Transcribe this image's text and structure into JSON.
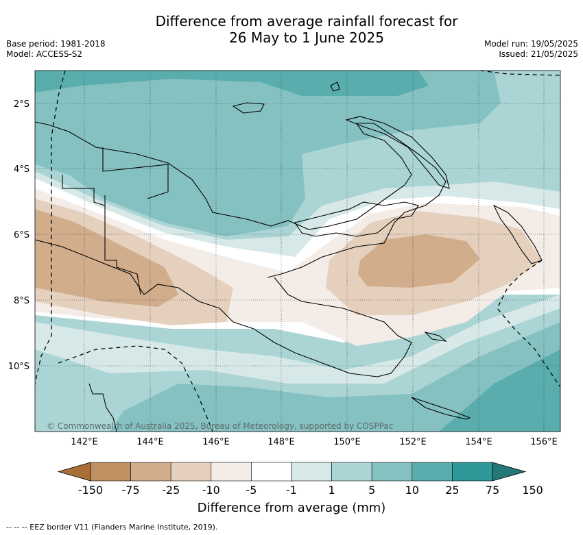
{
  "title_line1": "Difference from average rainfall forecast for",
  "title_line2": "26 May to 1 June 2025",
  "base_period": "Base period: 1981-2018",
  "model": "Model: ACCESS-S2",
  "model_run": "Model run: 19/05/2025",
  "issued": "Issued: 21/05/2025",
  "copyright": "© Commonwealth of Australia 2025, Bureau of Meteorology, supported by COSPPac",
  "footer_legend": "--  --  -- EEZ border V11 (Flanders Marine Institute, 2019).",
  "lon_labels": [
    "142°E",
    "144°E",
    "146°E",
    "148°E",
    "150°E",
    "152°E",
    "154°E",
    "156°E"
  ],
  "lat_labels": [
    "2°S",
    "4°S",
    "6°S",
    "8°S",
    "10°S"
  ],
  "colorbar": {
    "title": "Difference from average (mm)",
    "ticks": [
      "-150",
      "-75",
      "-25",
      "-10",
      "-5",
      "-1",
      "1",
      "5",
      "10",
      "25",
      "75",
      "150"
    ],
    "colors": [
      "#a86f38",
      "#bf9061",
      "#d1ad8c",
      "#e5d0be",
      "#f3ece7",
      "#ffffff",
      "#d6e8e8",
      "#abd5d5",
      "#86c1c1",
      "#5aadad",
      "#2f9898",
      "#257676"
    ]
  }
}
